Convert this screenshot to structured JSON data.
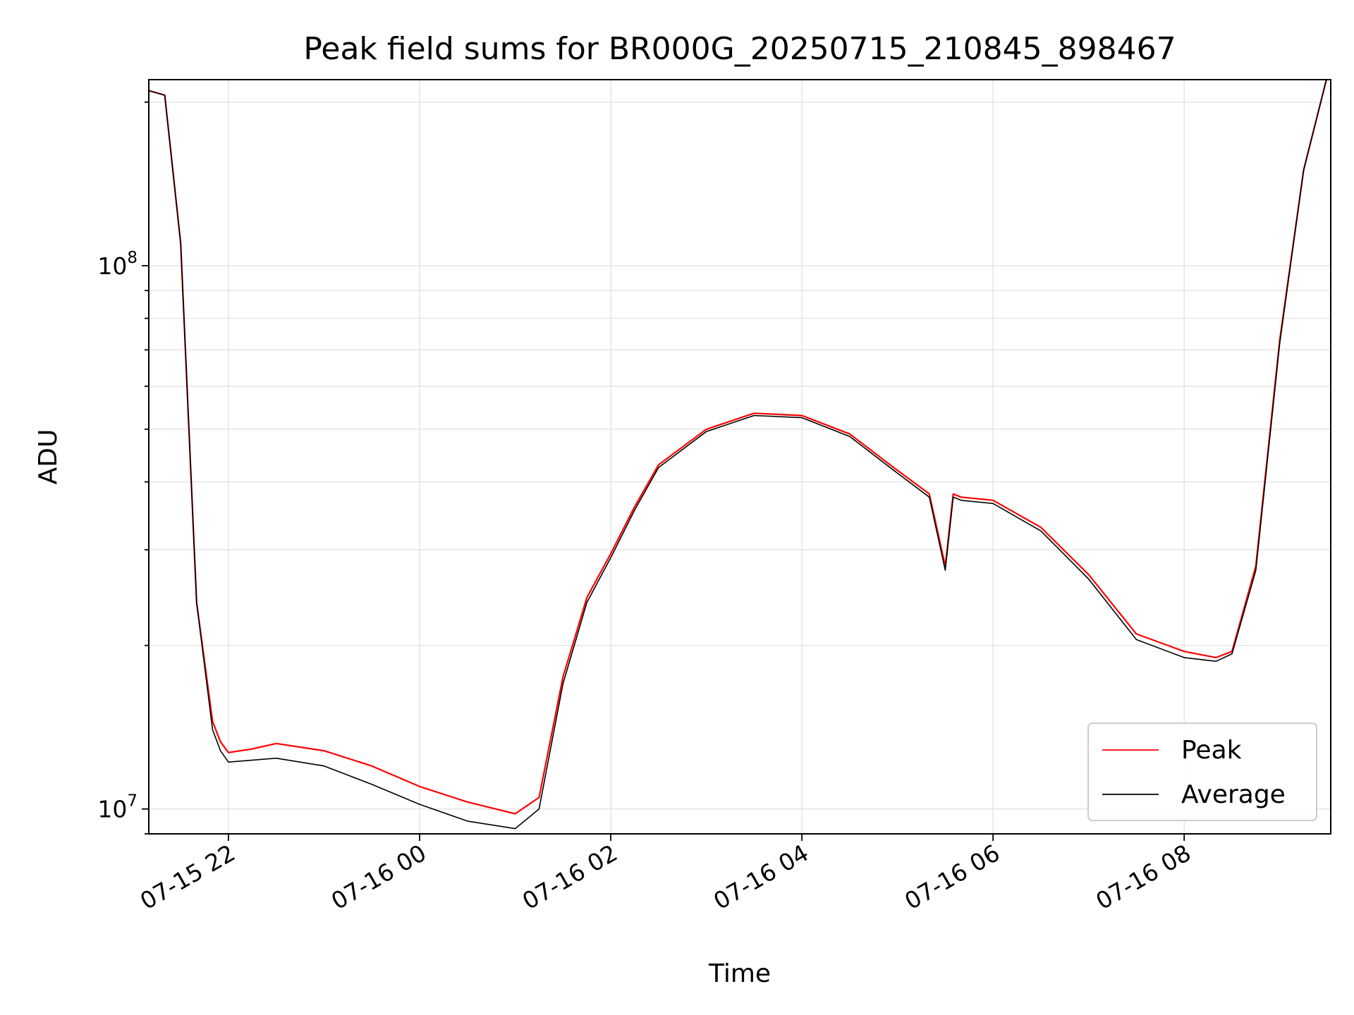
{
  "chart_data": {
    "type": "line",
    "title": "Peak field sums for BR000G_20250715_210845_898467",
    "xlabel": "Time",
    "ylabel": "ADU",
    "x_ticks": [
      "07-15 22",
      "07-16 00",
      "07-16 02",
      "07-16 04",
      "07-16 06",
      "07-16 08"
    ],
    "y_ticks": [
      {
        "base": "10",
        "exp": "7",
        "value": 10000000
      },
      {
        "base": "10",
        "exp": "8",
        "value": 100000000
      }
    ],
    "y_scale": "log",
    "ylim": [
      9000000,
      220000000
    ],
    "xlim": [
      "2025-07-15 21:10",
      "2025-07-16 09:32"
    ],
    "grid": true,
    "legend_position": "lower-right",
    "x": [
      "2025-07-15 21:10",
      "2025-07-15 21:20",
      "2025-07-15 21:30",
      "2025-07-15 21:40",
      "2025-07-15 21:50",
      "2025-07-15 21:55",
      "2025-07-15 22:00",
      "2025-07-15 22:15",
      "2025-07-15 22:30",
      "2025-07-15 23:00",
      "2025-07-15 23:30",
      "2025-07-16 00:00",
      "2025-07-16 00:30",
      "2025-07-16 01:00",
      "2025-07-16 01:15",
      "2025-07-16 01:30",
      "2025-07-16 01:45",
      "2025-07-16 02:00",
      "2025-07-16 02:15",
      "2025-07-16 02:30",
      "2025-07-16 03:00",
      "2025-07-16 03:30",
      "2025-07-16 04:00",
      "2025-07-16 04:30",
      "2025-07-16 05:00",
      "2025-07-16 05:20",
      "2025-07-16 05:30",
      "2025-07-16 05:35",
      "2025-07-16 05:40",
      "2025-07-16 06:00",
      "2025-07-16 06:30",
      "2025-07-16 07:00",
      "2025-07-16 07:30",
      "2025-07-16 08:00",
      "2025-07-16 08:20",
      "2025-07-16 08:30",
      "2025-07-16 08:45",
      "2025-07-16 09:00",
      "2025-07-16 09:15",
      "2025-07-16 09:30"
    ],
    "series": [
      {
        "name": "Peak",
        "color": "#ff0000",
        "values": [
          210000000,
          206000000,
          110000000,
          24000000,
          14500000,
          13300000,
          12700000,
          12900000,
          13200000,
          12800000,
          12000000,
          11000000,
          10300000,
          9800000,
          10500000,
          17500000,
          24500000,
          29500000,
          36000000,
          43000000,
          50000000,
          53500000,
          53000000,
          49000000,
          42000000,
          38000000,
          28000000,
          38000000,
          37500000,
          37000000,
          33000000,
          27000000,
          21000000,
          19500000,
          19000000,
          19500000,
          28000000,
          73000000,
          150000000,
          230000000
        ]
      },
      {
        "name": "Average",
        "color": "#000000",
        "values": [
          210000000,
          206000000,
          110000000,
          24000000,
          14000000,
          12800000,
          12200000,
          12300000,
          12400000,
          12000000,
          11100000,
          10200000,
          9500000,
          9200000,
          10000000,
          17000000,
          24000000,
          29000000,
          35500000,
          42500000,
          49500000,
          53000000,
          52500000,
          48500000,
          41500000,
          37500000,
          27500000,
          37500000,
          37000000,
          36500000,
          32500000,
          26500000,
          20500000,
          19000000,
          18700000,
          19300000,
          27500000,
          72000000,
          150000000,
          230000000
        ]
      }
    ]
  }
}
